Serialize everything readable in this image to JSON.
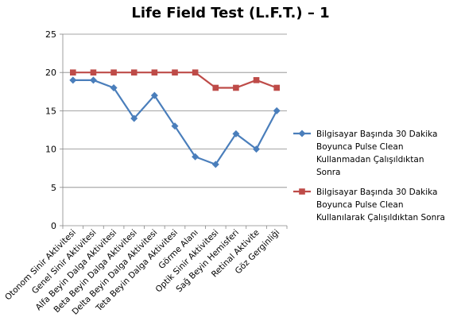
{
  "chart_data": {
    "type": "line",
    "title": "Life Field Test (L.F.T.) – 1",
    "xlabel": "",
    "ylabel": "",
    "ylim": [
      0,
      25
    ],
    "yticks": [
      0,
      5,
      10,
      15,
      20,
      25
    ],
    "grid": true,
    "legend_position": "right",
    "categories": [
      "Otonom Sinir Aktivitesi",
      "Genel Sinir Aktivitesi",
      "Alfa Beyin Dalga Aktivitesi",
      "Beta Beyin Dalga Aktivitesi",
      "Delta Beyin Dalga Aktivitesi",
      "Teta Beyin Dalga Aktivitesi",
      "Görme Alanı",
      "Optik Sinir Aktivitesi",
      "Sağ Beyin Hemisferi",
      "Retinal Aktivite",
      "Göz Gerginliği"
    ],
    "series": [
      {
        "name": "Bilgisayar Başında 30 Dakika Boyunca Pulse Clean Kullanmadan Çalışıldıktan Sonra",
        "legend_lines": [
          "Bilgisayar Başında 30 Dakika",
          "Boyunca Pulse Clean",
          "Kullanmadan Çalışıldıktan",
          "Sonra"
        ],
        "color": "#4a7ebb",
        "marker": "diamond",
        "values": [
          19,
          19,
          18,
          14,
          17,
          13,
          9,
          8,
          12,
          10,
          15
        ]
      },
      {
        "name": "Bilgisayar Başında 30 Dakika Boyunca Pulse Clean Kullanılarak Çalışıldıktan Sonra",
        "legend_lines": [
          "Bilgisayar Başında 30 Dakika",
          "Boyunca Pulse Clean",
          "Kullanılarak Çalışıldıktan Sonra"
        ],
        "color": "#be4b48",
        "marker": "square",
        "values": [
          20,
          20,
          20,
          20,
          20,
          20,
          20,
          18,
          18,
          19,
          18
        ]
      }
    ]
  }
}
